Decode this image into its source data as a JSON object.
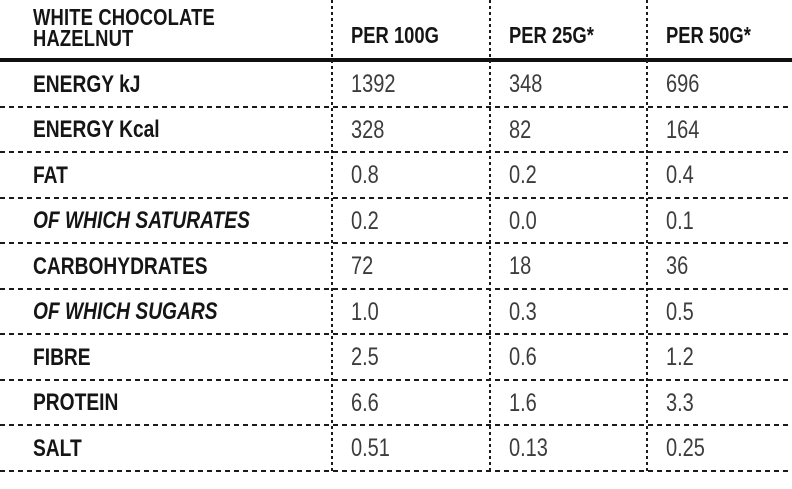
{
  "product": {
    "title_lines": [
      "WHITE CHOCOLATE",
      "HAZELNUT"
    ]
  },
  "columns": [
    {
      "label": "PER 100G"
    },
    {
      "label": "PER 25G*"
    },
    {
      "label": "PER 50G*"
    }
  ],
  "rows": [
    {
      "label": "ENERGY kJ",
      "italic": false,
      "values": [
        "1392",
        "348",
        "696"
      ]
    },
    {
      "label": "ENERGY Kcal",
      "italic": false,
      "values": [
        "328",
        "82",
        "164"
      ]
    },
    {
      "label": "FAT",
      "italic": false,
      "values": [
        "0.8",
        "0.2",
        "0.4"
      ]
    },
    {
      "label": "OF WHICH SATURATES",
      "italic": true,
      "values": [
        "0.2",
        "0.0",
        "0.1"
      ]
    },
    {
      "label": "CARBOHYDRATES",
      "italic": false,
      "values": [
        "72",
        "18",
        "36"
      ]
    },
    {
      "label": "OF WHICH SUGARS",
      "italic": true,
      "values": [
        "1.0",
        "0.3",
        "0.5"
      ]
    },
    {
      "label": "FIBRE",
      "italic": false,
      "values": [
        "2.5",
        "0.6",
        "1.2"
      ]
    },
    {
      "label": "PROTEIN",
      "italic": false,
      "values": [
        "6.6",
        "1.6",
        "3.3"
      ]
    },
    {
      "label": "SALT",
      "italic": false,
      "values": [
        "0.51",
        "0.13",
        "0.25"
      ]
    }
  ],
  "colors": {
    "label_text": "#151515",
    "value_text": "#3c3c3c",
    "rule": "#101010",
    "dashed_line": "#1b1b1b",
    "background": "#ffffff"
  }
}
